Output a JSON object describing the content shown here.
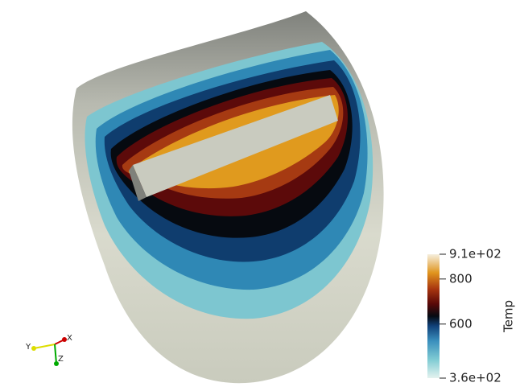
{
  "legend": {
    "title": "Temp",
    "range": [
      360,
      910
    ],
    "ticks": [
      {
        "value": 910,
        "label": "9.1e+02"
      },
      800,
      600,
      {
        "value": 360,
        "label": "3.6e+02"
      }
    ]
  },
  "orientation_axes": {
    "x": "X",
    "y": "Y",
    "z": "Z"
  }
}
